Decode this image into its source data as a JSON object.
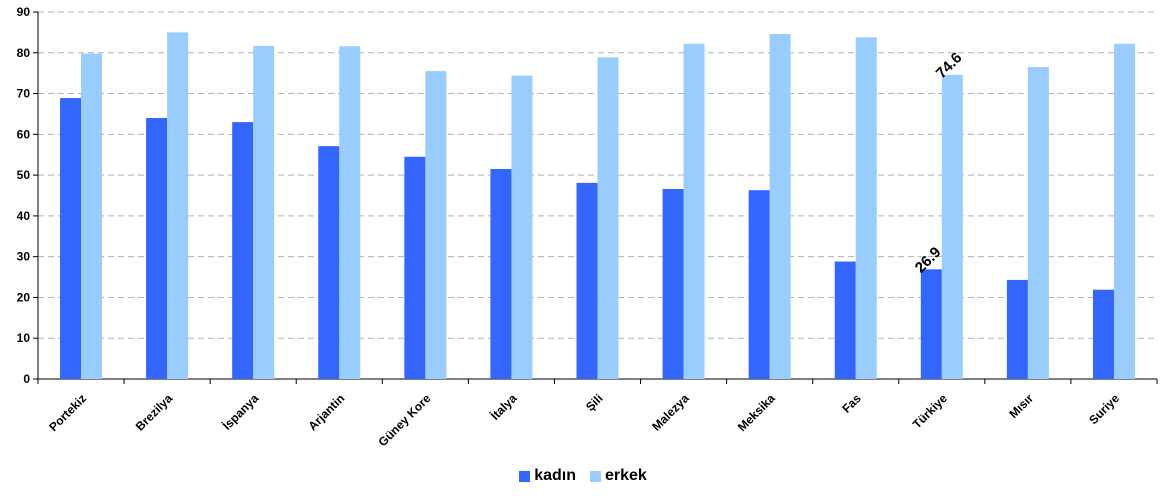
{
  "chart_data": {
    "type": "bar",
    "categories": [
      "Portekiz",
      "Brezilya",
      "İspanya",
      "Arjantin",
      "Güney Kore",
      "İtalya",
      "Şili",
      "Malezya",
      "Meksika",
      "Fas",
      "Türkiye",
      "Mısır",
      "Suriye"
    ],
    "series": [
      {
        "name": "kadın",
        "color": "#3366ff",
        "values": [
          68.9,
          64.0,
          63.0,
          57.1,
          54.5,
          51.5,
          48.1,
          46.6,
          46.3,
          28.8,
          26.9,
          24.3,
          21.9
        ]
      },
      {
        "name": "erkek",
        "color": "#99ccff",
        "values": [
          79.8,
          85.0,
          81.7,
          81.6,
          75.5,
          74.4,
          78.9,
          82.2,
          84.6,
          83.8,
          74.6,
          76.5,
          82.2
        ]
      }
    ],
    "ylim": [
      0,
      90
    ],
    "yticks": [
      "0",
      "10",
      "20",
      "30",
      "40",
      "50",
      "60",
      "70",
      "80",
      "90"
    ],
    "data_labels": [
      {
        "series": 0,
        "index": 10,
        "text": "26.9"
      },
      {
        "series": 1,
        "index": 10,
        "text": "74.6"
      }
    ],
    "grid": true,
    "legend_position": "bottom"
  }
}
